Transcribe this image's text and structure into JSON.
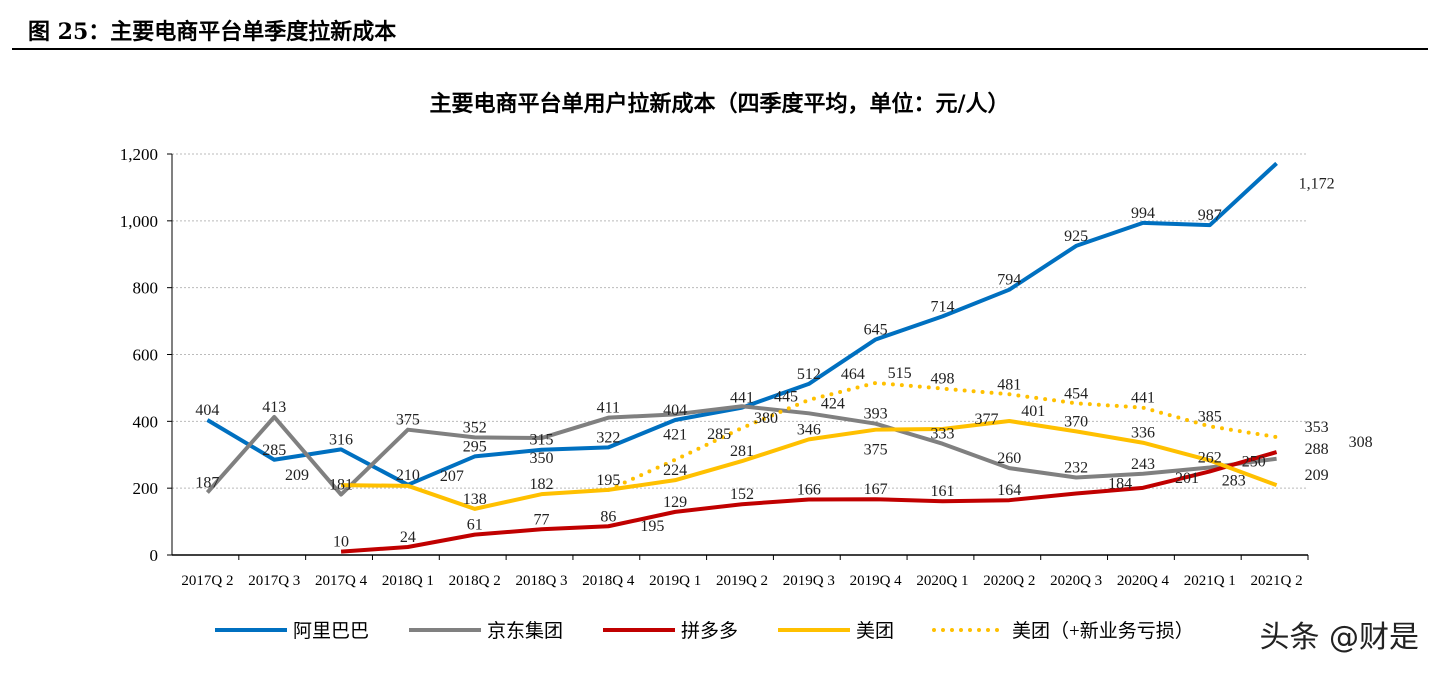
{
  "figure_title": "图 25：主要电商平台单季度拉新成本",
  "watermark": "头条 @财是",
  "chart_data": {
    "type": "line",
    "title": "主要电商平台单用户拉新成本（四季度平均，单位：元/人）",
    "xlabel": "",
    "ylabel": "",
    "ylim": [
      0,
      1200
    ],
    "yticks": [
      "0",
      "200",
      "400",
      "600",
      "800",
      "1,000",
      "1,200"
    ],
    "grid": true,
    "legend": "bottom",
    "categories": [
      "2017Q 2",
      "2017Q 3",
      "2017Q 4",
      "2018Q 1",
      "2018Q 2",
      "2018Q 3",
      "2018Q 4",
      "2019Q 1",
      "2019Q 2",
      "2019Q 3",
      "2019Q 4",
      "2020Q 1",
      "2020Q 2",
      "2020Q 3",
      "2020Q 4",
      "2021Q 1",
      "2021Q 2"
    ],
    "series": [
      {
        "name": "阿里巴巴",
        "color": "#0070C0",
        "style": "solid",
        "values": [
          404,
          285,
          316,
          210,
          295,
          315,
          322,
          404,
          441,
          512,
          645,
          714,
          794,
          925,
          994,
          987,
          1172
        ]
      },
      {
        "name": "京东集团",
        "color": "#808080",
        "style": "solid",
        "values": [
          187,
          413,
          181,
          375,
          352,
          350,
          411,
          421,
          445,
          424,
          393,
          333,
          260,
          232,
          243,
          262,
          288
        ]
      },
      {
        "name": "拼多多",
        "color": "#C00000",
        "style": "solid",
        "values": [
          null,
          null,
          10,
          24,
          61,
          77,
          86,
          129,
          152,
          166,
          167,
          161,
          164,
          184,
          201,
          250,
          308
        ]
      },
      {
        "name": "美团",
        "color": "#FFC000",
        "style": "solid",
        "values": [
          null,
          null,
          209,
          207,
          138,
          182,
          195,
          224,
          281,
          346,
          375,
          377,
          401,
          370,
          336,
          283,
          209
        ]
      },
      {
        "name": "美团（+新业务亏损）",
        "color": "#FFC000",
        "style": "dotted",
        "values": [
          null,
          null,
          null,
          null,
          null,
          null,
          195,
          285,
          380,
          464,
          515,
          498,
          481,
          454,
          441,
          385,
          353
        ]
      }
    ]
  }
}
